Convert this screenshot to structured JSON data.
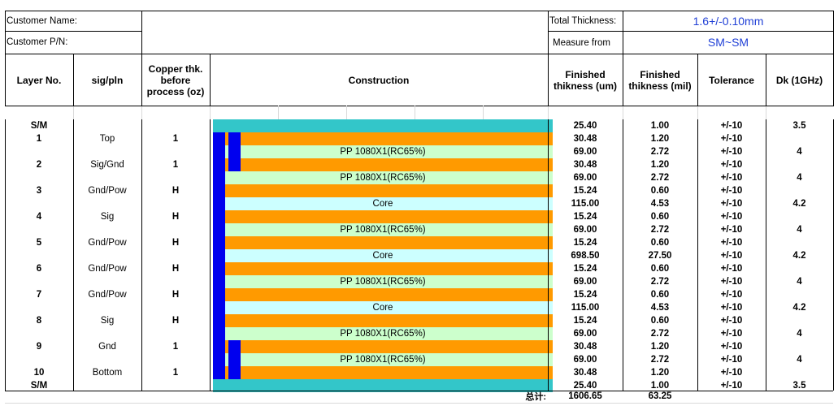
{
  "top": {
    "customer_name_label": "Customer Name:",
    "customer_pn_label": "Customer P/N:",
    "total_thickness_label": "Total Thickness:",
    "total_thickness_value": "1.6+/-0.10mm",
    "measure_from_label": "Measure from",
    "measure_from_value": "SM~SM"
  },
  "headers": {
    "layer_no": "Layer No.",
    "sig_pln": "sig/pln",
    "copper_l1": "Copper thk.",
    "copper_l2": "before",
    "copper_l3": "process (oz)",
    "construction": "Construction",
    "fin_um_l1": "Finished",
    "fin_um_l2": "thikness (um)",
    "fin_mil_l1": "Finished",
    "fin_mil_l2": "thikness (mil)",
    "tolerance": "Tolerance",
    "dk": "Dk (1GHz)"
  },
  "rows": [
    {
      "layer": "S/M",
      "sig": "",
      "cu": "",
      "construction": "",
      "kind": "mask",
      "um": "25.40",
      "mil": "1.00",
      "tol": "+/-10",
      "dk": "3.5"
    },
    {
      "layer": "1",
      "sig": "Top",
      "cu": "1",
      "construction": "",
      "kind": "copper",
      "um": "30.48",
      "mil": "1.20",
      "tol": "+/-10",
      "dk": ""
    },
    {
      "layer": "",
      "sig": "",
      "cu": "",
      "construction": "PP 1080X1(RC65%)",
      "kind": "pp",
      "um": "69.00",
      "mil": "2.72",
      "tol": "+/-10",
      "dk": "4"
    },
    {
      "layer": "2",
      "sig": "Sig/Gnd",
      "cu": "1",
      "construction": "",
      "kind": "copper",
      "um": "30.48",
      "mil": "1.20",
      "tol": "+/-10",
      "dk": ""
    },
    {
      "layer": "",
      "sig": "",
      "cu": "",
      "construction": "PP 1080X1(RC65%)",
      "kind": "pp",
      "um": "69.00",
      "mil": "2.72",
      "tol": "+/-10",
      "dk": "4"
    },
    {
      "layer": "3",
      "sig": "Gnd/Pow",
      "cu": "H",
      "construction": "",
      "kind": "copper",
      "um": "15.24",
      "mil": "0.60",
      "tol": "+/-10",
      "dk": ""
    },
    {
      "layer": "",
      "sig": "",
      "cu": "",
      "construction": "Core",
      "kind": "core",
      "um": "115.00",
      "mil": "4.53",
      "tol": "+/-10",
      "dk": "4.2"
    },
    {
      "layer": "4",
      "sig": "Sig",
      "cu": "H",
      "construction": "",
      "kind": "copper",
      "um": "15.24",
      "mil": "0.60",
      "tol": "+/-10",
      "dk": ""
    },
    {
      "layer": "",
      "sig": "",
      "cu": "",
      "construction": "PP 1080X1(RC65%)",
      "kind": "pp",
      "um": "69.00",
      "mil": "2.72",
      "tol": "+/-10",
      "dk": "4"
    },
    {
      "layer": "5",
      "sig": "Gnd/Pow",
      "cu": "H",
      "construction": "",
      "kind": "copper",
      "um": "15.24",
      "mil": "0.60",
      "tol": "+/-10",
      "dk": ""
    },
    {
      "layer": "",
      "sig": "",
      "cu": "",
      "construction": "Core",
      "kind": "core",
      "um": "698.50",
      "mil": "27.50",
      "tol": "+/-10",
      "dk": "4.2"
    },
    {
      "layer": "6",
      "sig": "Gnd/Pow",
      "cu": "H",
      "construction": "",
      "kind": "copper",
      "um": "15.24",
      "mil": "0.60",
      "tol": "+/-10",
      "dk": ""
    },
    {
      "layer": "",
      "sig": "",
      "cu": "",
      "construction": "PP 1080X1(RC65%)",
      "kind": "pp",
      "um": "69.00",
      "mil": "2.72",
      "tol": "+/-10",
      "dk": "4"
    },
    {
      "layer": "7",
      "sig": "Gnd/Pow",
      "cu": "H",
      "construction": "",
      "kind": "copper",
      "um": "15.24",
      "mil": "0.60",
      "tol": "+/-10",
      "dk": ""
    },
    {
      "layer": "",
      "sig": "",
      "cu": "",
      "construction": "Core",
      "kind": "core",
      "um": "115.00",
      "mil": "4.53",
      "tol": "+/-10",
      "dk": "4.2"
    },
    {
      "layer": "8",
      "sig": "Sig",
      "cu": "H",
      "construction": "",
      "kind": "copper",
      "um": "15.24",
      "mil": "0.60",
      "tol": "+/-10",
      "dk": ""
    },
    {
      "layer": "",
      "sig": "",
      "cu": "",
      "construction": "PP 1080X1(RC65%)",
      "kind": "pp",
      "um": "69.00",
      "mil": "2.72",
      "tol": "+/-10",
      "dk": "4"
    },
    {
      "layer": "9",
      "sig": "Gnd",
      "cu": "1",
      "construction": "",
      "kind": "copper",
      "um": "30.48",
      "mil": "1.20",
      "tol": "+/-10",
      "dk": ""
    },
    {
      "layer": "",
      "sig": "",
      "cu": "",
      "construction": "PP 1080X1(RC65%)",
      "kind": "pp",
      "um": "69.00",
      "mil": "2.72",
      "tol": "+/-10",
      "dk": "4"
    },
    {
      "layer": "10",
      "sig": "Bottom",
      "cu": "1",
      "construction": "",
      "kind": "copper",
      "um": "30.48",
      "mil": "1.20",
      "tol": "+/-10",
      "dk": ""
    },
    {
      "layer": "S/M",
      "sig": "",
      "cu": "",
      "construction": "",
      "kind": "mask",
      "um": "25.40",
      "mil": "1.00",
      "tol": "+/-10",
      "dk": "3.5"
    }
  ],
  "total": {
    "label": "总计:",
    "um": "1606.65",
    "mil": "63.25"
  },
  "colors": {
    "solder_mask": "#33c6c9",
    "copper": "#ff9a00",
    "prepreg": "#ccffcc",
    "core": "#ccffff",
    "via_bar": "#0000ee",
    "header_value": "#1f3fd6"
  }
}
